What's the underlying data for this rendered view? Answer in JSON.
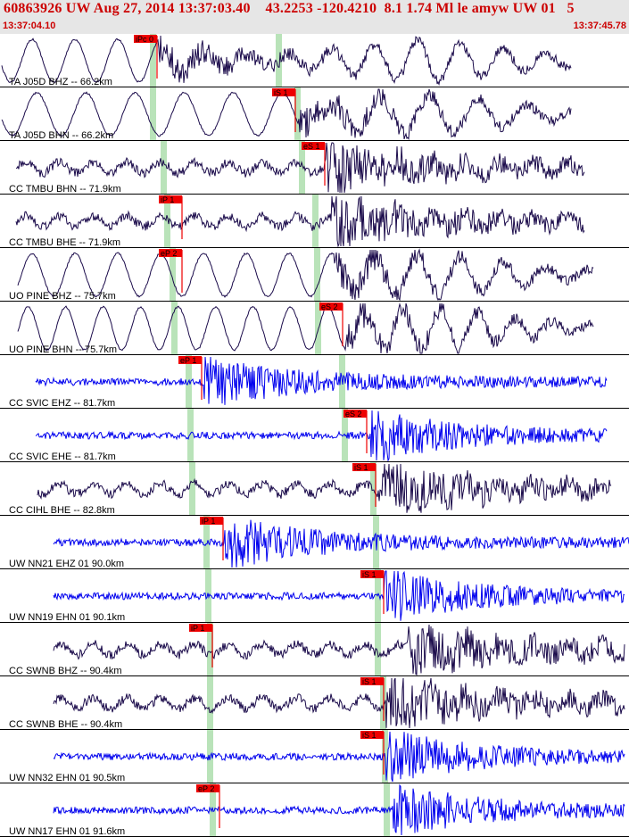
{
  "header": {
    "title": "60863926 UW Aug 27, 2014 13:37:03.40    43.2253 -120.4210  8.1 1.74 Ml le amyw UW 01   5",
    "start_time": "13:37:04.10",
    "end_time": "13:37:45.78"
  },
  "colors": {
    "header_bg": "#e6e6e6",
    "header_text": "#cc0000",
    "trace_dark": "#1a0a4a",
    "trace_blue": "#0000ee",
    "pick_red": "#ee0000",
    "window_green": "#b9e3b9"
  },
  "traces": [
    {
      "label": "TA J05D BHZ -- 66.2km",
      "color": "dark",
      "pick": "iPc 0",
      "type": "lowfreq"
    },
    {
      "label": "TA J05D BHN -- 66.2km",
      "color": "dark",
      "pick": "iS 1",
      "type": "lowfreq2"
    },
    {
      "label": "CC TMBU BHN -- 71.9km",
      "color": "dark",
      "pick": "eS 1",
      "type": "mixed"
    },
    {
      "label": "CC TMBU BHE -- 71.9km",
      "color": "dark",
      "pick": "iP 1",
      "type": "mixed"
    },
    {
      "label": "UO PINE BHZ -- 75.7km",
      "color": "dark",
      "pick": "eP 2",
      "type": "lowfreq"
    },
    {
      "label": "UO PINE BHN -- 75.7km",
      "color": "dark",
      "pick": "eS 2",
      "type": "lowfreq3"
    },
    {
      "label": "CC SVIC EHZ -- 81.7km",
      "color": "blue",
      "pick": "eP 1",
      "type": "hf"
    },
    {
      "label": "CC SVIC EHE -- 81.7km",
      "color": "blue",
      "pick": "eS 2",
      "type": "hf"
    },
    {
      "label": "CC CIHL BHE -- 82.8km",
      "color": "dark",
      "pick": "iS 1",
      "type": "mixed"
    },
    {
      "label": "UW NN21 EHZ 01 90.0km",
      "color": "blue",
      "pick": "iP 1",
      "type": "hf"
    },
    {
      "label": "UW NN19 EHN 01 90.1km",
      "color": "blue",
      "pick": "iS 1",
      "type": "hf"
    },
    {
      "label": "CC SWNB BHZ -- 90.4km",
      "color": "dark",
      "pick": "iP 1",
      "type": "mixed"
    },
    {
      "label": "CC SWNB BHE -- 90.4km",
      "color": "dark",
      "pick": "iS 1",
      "type": "mixed"
    },
    {
      "label": "UW NN32 EHN 01 90.5km",
      "color": "blue",
      "pick": "iS 1",
      "type": "hf"
    },
    {
      "label": "UW NN17 EHN 01 91.6km",
      "color": "blue",
      "pick": "eP 2",
      "type": "hf"
    }
  ]
}
